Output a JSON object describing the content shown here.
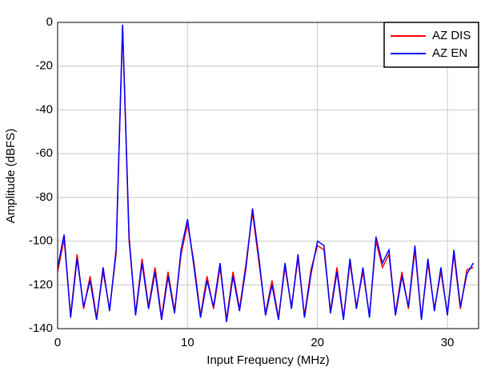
{
  "chart_data": {
    "type": "line",
    "xlabel": "Input Frequency (MHz)",
    "ylabel": "Amplitude (dBFS)",
    "x": [
      0,
      0.5,
      1,
      1.5,
      2,
      2.5,
      3,
      3.5,
      4,
      4.5,
      5,
      5.5,
      6,
      6.5,
      7,
      7.5,
      8,
      8.5,
      9,
      9.5,
      10,
      10.5,
      11,
      11.5,
      12,
      12.5,
      13,
      13.5,
      14,
      14.5,
      15,
      15.5,
      16,
      16.5,
      17,
      17.5,
      18,
      18.5,
      19,
      19.5,
      20,
      20.5,
      21,
      21.5,
      22,
      22.5,
      23,
      23.5,
      24,
      24.5,
      25,
      25.5,
      26,
      26.5,
      27,
      27.5,
      28,
      28.5,
      29,
      29.5,
      30,
      30.5,
      31,
      31.5,
      32
    ],
    "series": [
      {
        "name": "AZ DIS",
        "color": "#ff0000",
        "values": [
          -114,
          -99,
          -134,
          -106,
          -131,
          -116,
          -135,
          -114,
          -131,
          -106,
          -2,
          -100,
          -133,
          -108,
          -130,
          -112,
          -135,
          -114,
          -132,
          -106,
          -92,
          -110,
          -134,
          -116,
          -131,
          -112,
          -136,
          -114,
          -131,
          -110,
          -87,
          -110,
          -133,
          -118,
          -135,
          -112,
          -130,
          -108,
          -134,
          -113,
          -102,
          -104,
          -132,
          -112,
          -135,
          -110,
          -130,
          -114,
          -134,
          -100,
          -112,
          -106,
          -133,
          -114,
          -131,
          -104,
          -135,
          -110,
          -131,
          -114,
          -133,
          -106,
          -131,
          -113,
          -112
        ]
      },
      {
        "name": "AZ EN",
        "color": "#0000ff",
        "values": [
          -112,
          -97,
          -135,
          -108,
          -130,
          -118,
          -136,
          -112,
          -132,
          -104,
          -1,
          -98,
          -134,
          -110,
          -131,
          -114,
          -136,
          -116,
          -133,
          -104,
          -90,
          -112,
          -135,
          -118,
          -130,
          -110,
          -137,
          -116,
          -132,
          -112,
          -85,
          -108,
          -134,
          -120,
          -136,
          -110,
          -131,
          -106,
          -135,
          -115,
          -100,
          -102,
          -133,
          -114,
          -136,
          -108,
          -131,
          -112,
          -135,
          -98,
          -110,
          -104,
          -134,
          -116,
          -130,
          -102,
          -136,
          -108,
          -132,
          -112,
          -134,
          -104,
          -130,
          -115,
          -110
        ]
      }
    ],
    "xlim": [
      0,
      32.4
    ],
    "xticks": [
      0,
      10,
      20,
      30
    ],
    "ylim": [
      -140,
      0
    ],
    "yticks": [
      -140,
      -120,
      -100,
      -80,
      -60,
      -40,
      -20,
      0
    ],
    "grid": true,
    "legend": "upper right"
  }
}
